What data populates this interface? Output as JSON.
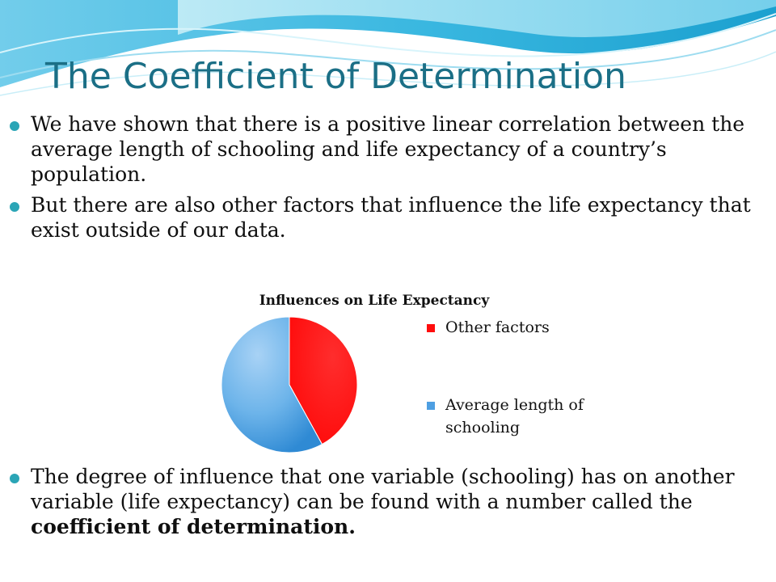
{
  "slide": {
    "title": "The Coefficient of Determination",
    "bullets": [
      "We have shown that there is a positive linear correlation between the average length of schooling and life expectancy of a country’s population.",
      "But there are also other factors that influence the life expectancy that exist outside of our data."
    ],
    "bottom_bullet": {
      "text": "The degree of influence that one variable (schooling) has on another variable (life expectancy) can be found with a number called the ",
      "emphasis": "coefficient of determination."
    }
  },
  "chart_data": {
    "type": "pie",
    "title": "Influences on Life Expectancy",
    "categories": [
      "Other factors",
      "Average length of schooling"
    ],
    "values": [
      42,
      58
    ],
    "colors": [
      "#ff0d0d",
      "#4e9fe2"
    ],
    "legend_position": "right",
    "legend": [
      {
        "label": "Other factors",
        "color": "#ff0d0d"
      },
      {
        "label": "Average length of schooling",
        "color": "#4e9fe2"
      }
    ]
  },
  "theme": {
    "title_color": "#1b6f86",
    "bullet_color": "#2ba5b6",
    "wave_colors": [
      "#58c2e5",
      "#1aa7d5",
      "#a8e3f1"
    ]
  }
}
